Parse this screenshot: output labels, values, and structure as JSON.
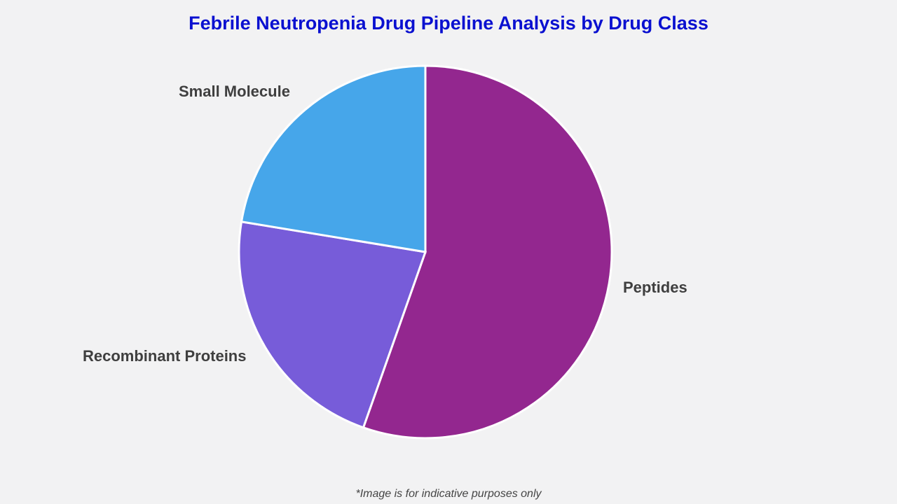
{
  "title": "Febrile Neutropenia Drug Pipeline Analysis by Drug Class",
  "footnote": "*Image is for indicative purposes only",
  "chart_data": {
    "type": "pie",
    "title": "Febrile Neutropenia Drug Pipeline Analysis by Drug Class",
    "categories": [
      "Peptides",
      "Recombinant Proteins",
      "Small Molecule"
    ],
    "values": [
      55.4,
      22.2,
      22.4
    ],
    "colors": [
      "#93278f",
      "#775cd9",
      "#46a6ea"
    ],
    "start_angle": "12 o'clock, clockwise",
    "legend": "none (direct labels)",
    "labels": [
      "Peptides",
      "Recombinant Proteins",
      "Small Molecule"
    ]
  }
}
